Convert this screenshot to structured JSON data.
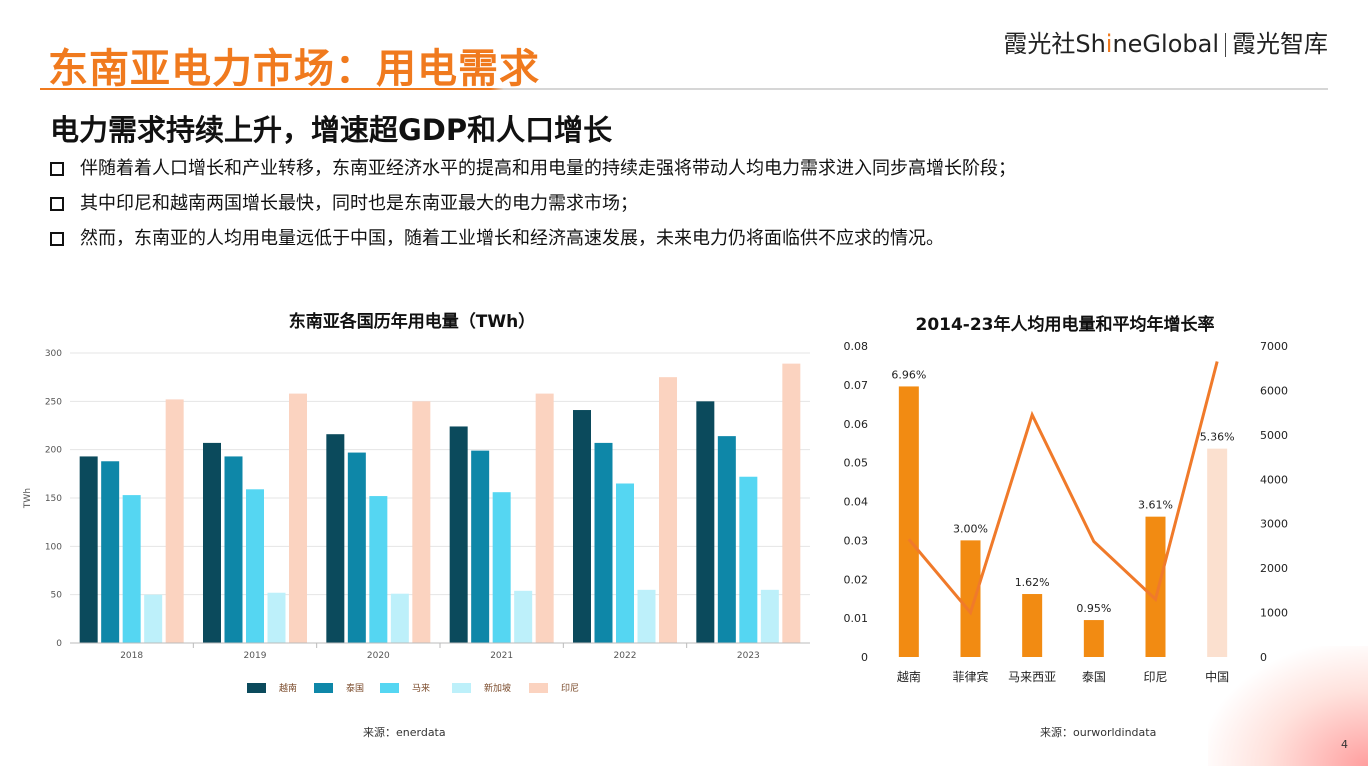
{
  "header": {
    "title": "东南亚电力市场：用电需求",
    "logo_left": "霞光社",
    "logo_brand_pre": "Sh",
    "logo_brand_i": "i",
    "logo_brand_post": "neGlobal",
    "logo_right": "霞光智库"
  },
  "subtitle": "电力需求持续上升，增速超GDP和人口增长",
  "bullets": [
    "伴随着着人口增长和产业转移，东南亚经济水平的提高和用电量的持续走强将带动人均电力需求进入同步高增长阶段；",
    "其中印尼和越南两国增长最快，同时也是东南亚最大的电力需求市场；",
    "然而，东南亚的人均用电量远低于中国，随着工业增长和经济高速发展，未来电力仍将面临供不应求的情况。"
  ],
  "chart_data": [
    {
      "type": "bar",
      "title": "东南亚各国历年用电量（TWh）",
      "xlabel": "",
      "ylabel": "TWh",
      "ylim": [
        0,
        300
      ],
      "yticks": [
        0,
        50,
        100,
        150,
        200,
        250,
        300
      ],
      "categories": [
        "2018",
        "2019",
        "2020",
        "2021",
        "2022",
        "2023"
      ],
      "series": [
        {
          "name": "越南",
          "color": "#0b4a5c",
          "values": [
            193,
            207,
            216,
            224,
            241,
            250
          ]
        },
        {
          "name": "泰国",
          "color": "#0e87a8",
          "values": [
            188,
            193,
            197,
            199,
            207,
            214
          ]
        },
        {
          "name": "马来",
          "color": "#55d6f2",
          "values": [
            153,
            159,
            152,
            156,
            165,
            172
          ]
        },
        {
          "name": "新加坡",
          "color": "#bdf0fa",
          "values": [
            50,
            52,
            51,
            54,
            55,
            55
          ]
        },
        {
          "name": "印尼",
          "color": "#fbd3c0",
          "values": [
            252,
            258,
            250,
            258,
            275,
            289
          ]
        }
      ],
      "legend": "bottom",
      "source": "来源：enerdata"
    },
    {
      "type": "bar+line",
      "title": "2014-23年人均用电量和平均年增长率",
      "categories": [
        "越南",
        "菲律宾",
        "马来西亚",
        "泰国",
        "印尼",
        "中国"
      ],
      "bars": {
        "axis": "left",
        "ylim": [
          0,
          0.08
        ],
        "yticks": [
          "0",
          "0.01",
          "0.02",
          "0.03",
          "0.04",
          "0.05",
          "0.06",
          "0.07",
          "0.08"
        ],
        "values": [
          0.0696,
          0.03,
          0.0162,
          0.0095,
          0.0361,
          0.0536
        ],
        "labels": [
          "6.96%",
          "3.00%",
          "1.62%",
          "0.95%",
          "3.61%",
          "5.36%"
        ],
        "colors": [
          "#f28b12",
          "#f28b12",
          "#f28b12",
          "#f28b12",
          "#f28b12",
          "#fbe0cf"
        ]
      },
      "line": {
        "axis": "right",
        "ylim": [
          0,
          7000
        ],
        "yticks": [
          "0",
          "1000",
          "2000",
          "3000",
          "4000",
          "5000",
          "6000",
          "7000"
        ],
        "values": [
          2650,
          1000,
          5450,
          2600,
          1300,
          6650
        ],
        "color": "#f07a2a"
      },
      "source": "来源：ourworldindata"
    }
  ],
  "page_number": "4"
}
